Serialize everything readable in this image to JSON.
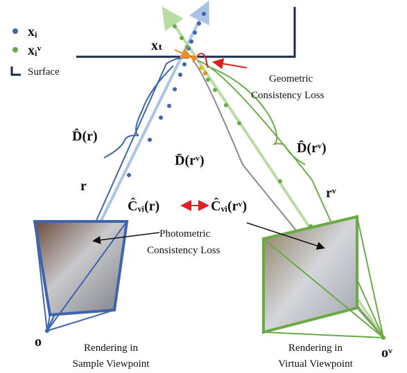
{
  "legend": {
    "points": "xᵢ",
    "virtual_points": "xᵢᵛ",
    "surface": "Surface"
  },
  "labels": {
    "target_point": "xₜ",
    "geometric_loss": [
      "Geometric",
      "Consistency Loss"
    ],
    "depth": "D̂(r)",
    "ray": "r",
    "virtual_mean_depth": "D̄(rᵛ)",
    "virtual_depth": "D̂(rᵛ)",
    "virtual_ray": "rᵛ",
    "color": "Ĉᵥᵢ(r)",
    "virtual_color": "Ĉᵥᵢ(rᵛ)",
    "photometric_loss": [
      "Photometric",
      "Consistency Loss"
    ],
    "origin": "o",
    "virtual_origin": "oᵛ"
  },
  "captions": {
    "sample": [
      "Rendering in",
      "Sample Viewpoint"
    ],
    "virtual": [
      "Rendering in",
      "Virtual Viewpoint"
    ]
  }
}
